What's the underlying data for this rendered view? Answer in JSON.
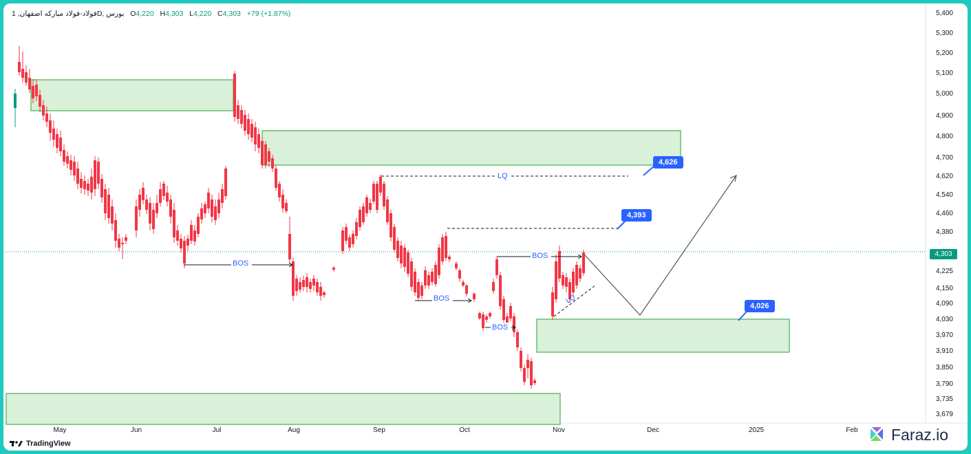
{
  "legend": {
    "symbol": "فولاد-فولاد مبارکه اصفهان, 1D, بورس",
    "o_label": "O",
    "o_value": "4,220",
    "h_label": "H",
    "h_value": "4,303",
    "l_label": "L",
    "l_value": "4,220",
    "c_label": "C",
    "c_value": "4,303",
    "change": "+79 (+1.87%)"
  },
  "y_axis": [
    "5,400",
    "5,300",
    "5,200",
    "5,100",
    "5,000",
    "4,900",
    "4,800",
    "4,700",
    "4,620",
    "4,540",
    "4,460",
    "4,380",
    "4,303",
    "4,225",
    "4,150",
    "4,090",
    "4,030",
    "3,970",
    "3,910",
    "3,850",
    "3,790",
    "3,735",
    "3,679"
  ],
  "x_axis": [
    "May",
    "Jun",
    "Jul",
    "Aug",
    "Sep",
    "Oct",
    "Nov",
    "Dec",
    "2025",
    "Feb"
  ],
  "current_price": "4,303",
  "annotations": {
    "bos": [
      "BOS",
      "BOS",
      "BOS",
      "BOS"
    ],
    "lq": [
      "LQ",
      "LQ"
    ],
    "callouts": [
      "4,626",
      "4,393",
      "4,026"
    ]
  },
  "footer": {
    "tradingview": "TradingView",
    "brand": "Faraz.io"
  },
  "colors": {
    "up": "#089981",
    "down": "#f23645",
    "zone_fill": "#d9f0d9",
    "zone_stroke": "#4caf50",
    "callout": "#2962ff",
    "frame": "#1fc9bd"
  }
}
